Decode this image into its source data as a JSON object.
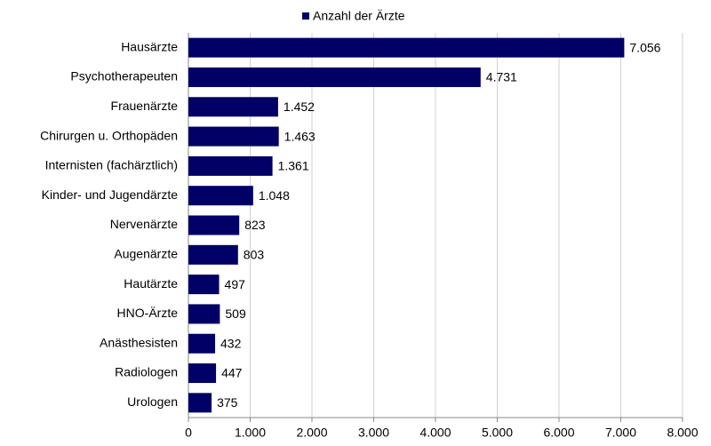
{
  "chart_data": {
    "type": "bar",
    "orientation": "horizontal",
    "categories": [
      "Hausärzte",
      "Psychotherapeuten",
      "Frauenärzte",
      "Chirurgen u. Orthopäden",
      "Internisten (fachärztlich)",
      "Kinder- und Jugendärzte",
      "Nervenärzte",
      "Augenärzte",
      "Hautärzte",
      "HNO-Ärzte",
      "Anästhesisten",
      "Radiologen",
      "Urologen"
    ],
    "series": [
      {
        "name": "Anzahl der Ärzte",
        "color": "#000066",
        "values": [
          7056,
          4731,
          1452,
          1463,
          1361,
          1048,
          823,
          803,
          497,
          509,
          432,
          447,
          375
        ],
        "value_labels": [
          "7.056",
          "4.731",
          "1.452",
          "1.463",
          "1.361",
          "1.048",
          "823",
          "803",
          "497",
          "509",
          "432",
          "447",
          "375"
        ]
      }
    ],
    "xlim": [
      0,
      8000
    ],
    "xticks": [
      0,
      {
        "value": 1000,
        "label": "1.000"
      },
      {
        "value": 2000,
        "label": "2.000"
      },
      {
        "value": 3000,
        "label": "3.000"
      },
      {
        "value": 4000,
        "label": "4.000"
      },
      {
        "value": 5000,
        "label": "5.000"
      },
      {
        "value": 6000,
        "label": "6.000"
      },
      {
        "value": 7000,
        "label": "7.000"
      },
      {
        "value": 8000,
        "label": "8.000"
      }
    ],
    "grid": true,
    "legend": "top"
  }
}
